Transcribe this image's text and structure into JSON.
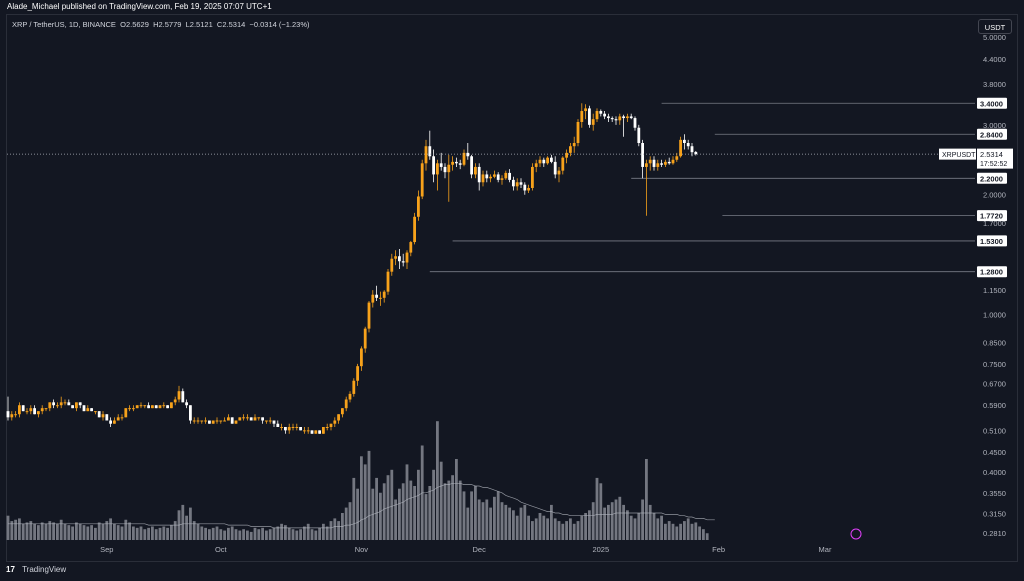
{
  "header": {
    "published_line": "Alade_Michael published on TradingView.com, Feb 19, 2025 07:07 UTC+1"
  },
  "legend": {
    "symbol": "XRP / TetherUS, 1D, BINANCE",
    "o_label": "O",
    "o": "2.5629",
    "h_label": "H",
    "h": "2.5779",
    "l_label": "L",
    "l": "2.5121",
    "c_label": "C",
    "c": "2.5314",
    "change": "−0.0314 (−1.23%)"
  },
  "currency_button": "USDT",
  "footer": {
    "logo_glyph": "17",
    "brand": "TradingView"
  },
  "colors": {
    "background": "#131722",
    "up": "#f7a21b",
    "down": "#ffffff",
    "volume": "#9598a1",
    "level_line": "#787b86",
    "price_line": "#b2b5be"
  },
  "chart_data": {
    "type": "candlestick",
    "symbol": "XRPUSDT",
    "scale": "log",
    "ylim": [
      0.27,
      5.2
    ],
    "x_ticks": [
      "Sep",
      "Oct",
      "Nov",
      "Dec",
      "2025",
      "Feb",
      "Mar"
    ],
    "y_ticks": [
      "5.0000",
      "4.4000",
      "3.8000",
      "3.0000",
      "2.5000",
      "2.0000",
      "1.7000",
      "1.1500",
      "1.0000",
      "0.8500",
      "0.7500",
      "0.6700",
      "0.5900",
      "0.5100",
      "0.4500",
      "0.4000",
      "0.3550",
      "0.3150",
      "0.2810"
    ],
    "levels": [
      "3.4000",
      "2.8400",
      "2.2000",
      "1.7720",
      "1.5300",
      "1.2800"
    ],
    "current_price": {
      "label": "XRPUSDT",
      "price": "2.5314",
      "countdown": "17:52:52"
    },
    "ohlc": [
      [
        0.57,
        0.62,
        0.54,
        0.55
      ],
      [
        0.55,
        0.57,
        0.54,
        0.56
      ],
      [
        0.56,
        0.57,
        0.55,
        0.56
      ],
      [
        0.56,
        0.6,
        0.55,
        0.59
      ],
      [
        0.59,
        0.59,
        0.57,
        0.57
      ],
      [
        0.57,
        0.58,
        0.56,
        0.57
      ],
      [
        0.57,
        0.59,
        0.56,
        0.58
      ],
      [
        0.58,
        0.59,
        0.56,
        0.56
      ],
      [
        0.56,
        0.57,
        0.55,
        0.57
      ],
      [
        0.57,
        0.59,
        0.56,
        0.58
      ],
      [
        0.58,
        0.58,
        0.57,
        0.58
      ],
      [
        0.58,
        0.6,
        0.57,
        0.6
      ],
      [
        0.6,
        0.61,
        0.58,
        0.59
      ],
      [
        0.59,
        0.6,
        0.58,
        0.59
      ],
      [
        0.59,
        0.62,
        0.58,
        0.6
      ],
      [
        0.6,
        0.61,
        0.59,
        0.6
      ],
      [
        0.6,
        0.61,
        0.59,
        0.59
      ],
      [
        0.59,
        0.59,
        0.58,
        0.58
      ],
      [
        0.58,
        0.6,
        0.57,
        0.6
      ],
      [
        0.6,
        0.6,
        0.58,
        0.59
      ],
      [
        0.59,
        0.59,
        0.57,
        0.57
      ],
      [
        0.57,
        0.59,
        0.57,
        0.58
      ],
      [
        0.58,
        0.58,
        0.57,
        0.57
      ],
      [
        0.57,
        0.57,
        0.56,
        0.57
      ],
      [
        0.57,
        0.57,
        0.55,
        0.55
      ],
      [
        0.55,
        0.57,
        0.54,
        0.56
      ],
      [
        0.56,
        0.56,
        0.54,
        0.54
      ],
      [
        0.54,
        0.55,
        0.52,
        0.53
      ],
      [
        0.53,
        0.55,
        0.53,
        0.54
      ],
      [
        0.54,
        0.56,
        0.54,
        0.55
      ],
      [
        0.55,
        0.56,
        0.54,
        0.55
      ],
      [
        0.55,
        0.58,
        0.55,
        0.58
      ],
      [
        0.58,
        0.59,
        0.57,
        0.58
      ],
      [
        0.58,
        0.59,
        0.57,
        0.58
      ],
      [
        0.58,
        0.59,
        0.58,
        0.59
      ],
      [
        0.59,
        0.6,
        0.58,
        0.59
      ],
      [
        0.59,
        0.59,
        0.58,
        0.59
      ],
      [
        0.59,
        0.6,
        0.58,
        0.58
      ],
      [
        0.58,
        0.59,
        0.58,
        0.59
      ],
      [
        0.59,
        0.59,
        0.58,
        0.58
      ],
      [
        0.58,
        0.59,
        0.58,
        0.59
      ],
      [
        0.59,
        0.6,
        0.58,
        0.59
      ],
      [
        0.59,
        0.59,
        0.58,
        0.58
      ],
      [
        0.58,
        0.6,
        0.58,
        0.6
      ],
      [
        0.6,
        0.62,
        0.59,
        0.61
      ],
      [
        0.61,
        0.66,
        0.6,
        0.64
      ],
      [
        0.64,
        0.65,
        0.6,
        0.6
      ],
      [
        0.6,
        0.61,
        0.58,
        0.59
      ],
      [
        0.59,
        0.59,
        0.53,
        0.54
      ],
      [
        0.54,
        0.55,
        0.53,
        0.54
      ],
      [
        0.54,
        0.55,
        0.53,
        0.54
      ],
      [
        0.54,
        0.54,
        0.53,
        0.54
      ],
      [
        0.54,
        0.55,
        0.53,
        0.54
      ],
      [
        0.54,
        0.54,
        0.53,
        0.53
      ],
      [
        0.53,
        0.54,
        0.53,
        0.54
      ],
      [
        0.54,
        0.55,
        0.53,
        0.54
      ],
      [
        0.54,
        0.54,
        0.53,
        0.54
      ],
      [
        0.54,
        0.55,
        0.54,
        0.54
      ],
      [
        0.54,
        0.56,
        0.54,
        0.55
      ],
      [
        0.55,
        0.55,
        0.53,
        0.53
      ],
      [
        0.53,
        0.54,
        0.53,
        0.54
      ],
      [
        0.54,
        0.55,
        0.54,
        0.55
      ],
      [
        0.55,
        0.56,
        0.54,
        0.55
      ],
      [
        0.55,
        0.56,
        0.54,
        0.55
      ],
      [
        0.55,
        0.55,
        0.54,
        0.54
      ],
      [
        0.54,
        0.56,
        0.54,
        0.55
      ],
      [
        0.55,
        0.55,
        0.54,
        0.55
      ],
      [
        0.55,
        0.55,
        0.53,
        0.54
      ],
      [
        0.54,
        0.54,
        0.53,
        0.54
      ],
      [
        0.54,
        0.55,
        0.53,
        0.54
      ],
      [
        0.54,
        0.54,
        0.52,
        0.53
      ],
      [
        0.53,
        0.54,
        0.52,
        0.52
      ],
      [
        0.52,
        0.53,
        0.51,
        0.52
      ],
      [
        0.52,
        0.52,
        0.5,
        0.51
      ],
      [
        0.51,
        0.53,
        0.5,
        0.52
      ],
      [
        0.52,
        0.53,
        0.51,
        0.52
      ],
      [
        0.52,
        0.53,
        0.51,
        0.52
      ],
      [
        0.52,
        0.52,
        0.51,
        0.51
      ],
      [
        0.51,
        0.52,
        0.5,
        0.51
      ],
      [
        0.51,
        0.52,
        0.5,
        0.51
      ],
      [
        0.51,
        0.51,
        0.5,
        0.5
      ],
      [
        0.5,
        0.51,
        0.5,
        0.51
      ],
      [
        0.51,
        0.51,
        0.5,
        0.5
      ],
      [
        0.5,
        0.52,
        0.5,
        0.52
      ],
      [
        0.52,
        0.53,
        0.51,
        0.52
      ],
      [
        0.52,
        0.53,
        0.51,
        0.53
      ],
      [
        0.53,
        0.55,
        0.52,
        0.54
      ],
      [
        0.54,
        0.56,
        0.53,
        0.56
      ],
      [
        0.56,
        0.58,
        0.55,
        0.58
      ],
      [
        0.58,
        0.62,
        0.57,
        0.61
      ],
      [
        0.61,
        0.64,
        0.6,
        0.63
      ],
      [
        0.63,
        0.69,
        0.62,
        0.68
      ],
      [
        0.68,
        0.75,
        0.66,
        0.74
      ],
      [
        0.74,
        0.83,
        0.72,
        0.82
      ],
      [
        0.82,
        0.93,
        0.8,
        0.92
      ],
      [
        0.92,
        1.08,
        0.9,
        1.07
      ],
      [
        1.07,
        1.15,
        1.04,
        1.12
      ],
      [
        1.12,
        1.18,
        1.08,
        1.1
      ],
      [
        1.1,
        1.14,
        1.05,
        1.1
      ],
      [
        1.1,
        1.15,
        1.07,
        1.14
      ],
      [
        1.14,
        1.3,
        1.12,
        1.28
      ],
      [
        1.28,
        1.42,
        1.25,
        1.38
      ],
      [
        1.38,
        1.45,
        1.33,
        1.4
      ],
      [
        1.4,
        1.46,
        1.3,
        1.36
      ],
      [
        1.36,
        1.42,
        1.32,
        1.35
      ],
      [
        1.35,
        1.45,
        1.3,
        1.43
      ],
      [
        1.43,
        1.53,
        1.4,
        1.52
      ],
      [
        1.52,
        1.8,
        1.5,
        1.76
      ],
      [
        1.76,
        2.05,
        1.72,
        1.98
      ],
      [
        1.98,
        2.45,
        1.95,
        2.4
      ],
      [
        2.4,
        2.75,
        2.3,
        2.65
      ],
      [
        2.65,
        2.9,
        2.45,
        2.5
      ],
      [
        2.5,
        2.6,
        2.15,
        2.25
      ],
      [
        2.25,
        2.45,
        2.05,
        2.4
      ],
      [
        2.4,
        2.55,
        2.3,
        2.35
      ],
      [
        2.35,
        2.4,
        2.2,
        2.28
      ],
      [
        2.28,
        2.52,
        1.92,
        2.38
      ],
      [
        2.38,
        2.5,
        2.3,
        2.42
      ],
      [
        2.42,
        2.48,
        2.35,
        2.4
      ],
      [
        2.4,
        2.45,
        2.32,
        2.38
      ],
      [
        2.38,
        2.6,
        2.36,
        2.55
      ],
      [
        2.55,
        2.7,
        2.45,
        2.5
      ],
      [
        2.5,
        2.52,
        2.2,
        2.25
      ],
      [
        2.25,
        2.4,
        2.2,
        2.35
      ],
      [
        2.35,
        2.4,
        2.05,
        2.15
      ],
      [
        2.15,
        2.3,
        2.1,
        2.25
      ],
      [
        2.25,
        2.3,
        2.15,
        2.2
      ],
      [
        2.2,
        2.25,
        2.15,
        2.22
      ],
      [
        2.22,
        2.3,
        2.2,
        2.25
      ],
      [
        2.25,
        2.28,
        2.15,
        2.18
      ],
      [
        2.18,
        2.24,
        2.12,
        2.2
      ],
      [
        2.2,
        2.3,
        2.18,
        2.27
      ],
      [
        2.27,
        2.32,
        2.15,
        2.18
      ],
      [
        2.18,
        2.22,
        2.05,
        2.1
      ],
      [
        2.1,
        2.2,
        2.05,
        2.15
      ],
      [
        2.15,
        2.2,
        2.08,
        2.12
      ],
      [
        2.12,
        2.15,
        2.0,
        2.05
      ],
      [
        2.05,
        2.12,
        2.02,
        2.08
      ],
      [
        2.08,
        2.4,
        2.05,
        2.35
      ],
      [
        2.35,
        2.45,
        2.28,
        2.4
      ],
      [
        2.4,
        2.5,
        2.35,
        2.45
      ],
      [
        2.45,
        2.48,
        2.35,
        2.4
      ],
      [
        2.4,
        2.5,
        2.38,
        2.48
      ],
      [
        2.48,
        2.52,
        2.4,
        2.42
      ],
      [
        2.42,
        2.5,
        2.2,
        2.25
      ],
      [
        2.25,
        2.35,
        2.15,
        2.3
      ],
      [
        2.3,
        2.5,
        2.25,
        2.48
      ],
      [
        2.48,
        2.6,
        2.4,
        2.55
      ],
      [
        2.55,
        2.7,
        2.5,
        2.65
      ],
      [
        2.65,
        2.8,
        2.55,
        2.7
      ],
      [
        2.7,
        3.1,
        2.65,
        3.05
      ],
      [
        3.05,
        3.4,
        2.95,
        3.25
      ],
      [
        3.25,
        3.38,
        3.1,
        3.3
      ],
      [
        3.3,
        3.35,
        2.95,
        3.0
      ],
      [
        3.0,
        3.2,
        2.9,
        3.1
      ],
      [
        3.1,
        3.3,
        3.05,
        3.25
      ],
      [
        3.25,
        3.28,
        3.15,
        3.2
      ],
      [
        3.2,
        3.25,
        3.1,
        3.15
      ],
      [
        3.15,
        3.2,
        3.05,
        3.12
      ],
      [
        3.12,
        3.15,
        3.05,
        3.1
      ],
      [
        3.1,
        3.15,
        3.0,
        3.08
      ],
      [
        3.08,
        3.2,
        3.0,
        3.15
      ],
      [
        3.15,
        3.18,
        2.8,
        3.12
      ],
      [
        3.12,
        3.2,
        3.05,
        3.15
      ],
      [
        3.15,
        3.2,
        3.1,
        3.12
      ],
      [
        3.12,
        3.15,
        2.9,
        2.95
      ],
      [
        2.95,
        3.0,
        2.65,
        2.7
      ],
      [
        2.7,
        2.75,
        2.2,
        2.35
      ],
      [
        2.35,
        2.45,
        1.77,
        2.4
      ],
      [
        2.4,
        2.5,
        2.3,
        2.45
      ],
      [
        2.45,
        2.5,
        2.3,
        2.35
      ],
      [
        2.35,
        2.45,
        2.3,
        2.4
      ],
      [
        2.4,
        2.45,
        2.35,
        2.38
      ],
      [
        2.38,
        2.45,
        2.35,
        2.42
      ],
      [
        2.42,
        2.48,
        2.38,
        2.4
      ],
      [
        2.4,
        2.5,
        2.38,
        2.45
      ],
      [
        2.45,
        2.55,
        2.42,
        2.5
      ],
      [
        2.5,
        2.8,
        2.48,
        2.75
      ],
      [
        2.75,
        2.84,
        2.6,
        2.7
      ],
      [
        2.7,
        2.75,
        2.6,
        2.65
      ],
      [
        2.65,
        2.7,
        2.5,
        2.56
      ],
      [
        2.5629,
        2.5779,
        2.5121,
        2.5314
      ]
    ],
    "volume_axis_max": 1.0,
    "volume": [
      0.18,
      0.14,
      0.15,
      0.16,
      0.12,
      0.13,
      0.14,
      0.12,
      0.11,
      0.13,
      0.12,
      0.14,
      0.13,
      0.12,
      0.15,
      0.12,
      0.11,
      0.1,
      0.13,
      0.12,
      0.11,
      0.1,
      0.11,
      0.09,
      0.13,
      0.12,
      0.14,
      0.16,
      0.12,
      0.11,
      0.1,
      0.15,
      0.13,
      0.1,
      0.09,
      0.1,
      0.08,
      0.09,
      0.1,
      0.08,
      0.09,
      0.1,
      0.09,
      0.11,
      0.14,
      0.22,
      0.26,
      0.18,
      0.24,
      0.14,
      0.12,
      0.1,
      0.09,
      0.08,
      0.09,
      0.1,
      0.08,
      0.07,
      0.09,
      0.1,
      0.08,
      0.07,
      0.08,
      0.07,
      0.06,
      0.09,
      0.08,
      0.09,
      0.07,
      0.08,
      0.09,
      0.1,
      0.12,
      0.11,
      0.09,
      0.08,
      0.07,
      0.08,
      0.1,
      0.12,
      0.08,
      0.07,
      0.09,
      0.12,
      0.1,
      0.14,
      0.16,
      0.14,
      0.2,
      0.24,
      0.28,
      0.46,
      0.38,
      0.62,
      0.56,
      0.66,
      0.38,
      0.46,
      0.35,
      0.42,
      0.48,
      0.52,
      0.3,
      0.38,
      0.42,
      0.56,
      0.44,
      0.4,
      0.52,
      0.7,
      0.34,
      0.4,
      0.52,
      0.88,
      0.58,
      0.42,
      0.44,
      0.48,
      0.6,
      0.44,
      0.36,
      0.24,
      0.36,
      0.4,
      0.3,
      0.28,
      0.3,
      0.24,
      0.32,
      0.36,
      0.28,
      0.26,
      0.24,
      0.22,
      0.18,
      0.24,
      0.26,
      0.18,
      0.14,
      0.16,
      0.2,
      0.18,
      0.16,
      0.26,
      0.16,
      0.14,
      0.12,
      0.14,
      0.16,
      0.12,
      0.14,
      0.18,
      0.2,
      0.22,
      0.28,
      0.46,
      0.42,
      0.24,
      0.26,
      0.28,
      0.3,
      0.32,
      0.26,
      0.22,
      0.18,
      0.16,
      0.2,
      0.3,
      0.6,
      0.26,
      0.2,
      0.16,
      0.18,
      0.12,
      0.14,
      0.12,
      0.1,
      0.12,
      0.14,
      0.16,
      0.12,
      0.13,
      0.1,
      0.08,
      0.05
    ],
    "volume_ma": [
      0.12,
      0.12,
      0.12,
      0.12,
      0.12,
      0.12,
      0.12,
      0.12,
      0.12,
      0.12,
      0.12,
      0.12,
      0.12,
      0.12,
      0.12,
      0.12,
      0.12,
      0.12,
      0.12,
      0.12,
      0.12,
      0.12,
      0.12,
      0.12,
      0.12,
      0.12,
      0.12,
      0.12,
      0.12,
      0.12,
      0.12,
      0.12,
      0.12,
      0.12,
      0.12,
      0.12,
      0.12,
      0.11,
      0.11,
      0.11,
      0.11,
      0.11,
      0.11,
      0.11,
      0.11,
      0.11,
      0.12,
      0.12,
      0.12,
      0.12,
      0.12,
      0.12,
      0.12,
      0.12,
      0.12,
      0.12,
      0.12,
      0.12,
      0.11,
      0.11,
      0.11,
      0.11,
      0.11,
      0.11,
      0.1,
      0.1,
      0.1,
      0.1,
      0.1,
      0.1,
      0.09,
      0.09,
      0.09,
      0.09,
      0.09,
      0.09,
      0.09,
      0.09,
      0.09,
      0.09,
      0.09,
      0.09,
      0.09,
      0.09,
      0.09,
      0.09,
      0.1,
      0.1,
      0.1,
      0.11,
      0.11,
      0.12,
      0.13,
      0.15,
      0.16,
      0.18,
      0.19,
      0.2,
      0.21,
      0.23,
      0.24,
      0.25,
      0.26,
      0.27,
      0.28,
      0.3,
      0.31,
      0.32,
      0.33,
      0.35,
      0.35,
      0.36,
      0.37,
      0.39,
      0.4,
      0.41,
      0.41,
      0.42,
      0.42,
      0.42,
      0.41,
      0.41,
      0.41,
      0.4,
      0.4,
      0.39,
      0.39,
      0.38,
      0.37,
      0.36,
      0.35,
      0.33,
      0.32,
      0.31,
      0.3,
      0.28,
      0.27,
      0.26,
      0.25,
      0.24,
      0.23,
      0.22,
      0.21,
      0.21,
      0.2,
      0.2,
      0.19,
      0.19,
      0.18,
      0.18,
      0.18,
      0.18,
      0.18,
      0.18,
      0.18,
      0.19,
      0.19,
      0.19,
      0.19,
      0.19,
      0.2,
      0.2,
      0.2,
      0.2,
      0.2,
      0.2,
      0.2,
      0.2,
      0.2,
      0.2,
      0.2,
      0.2,
      0.2,
      0.19,
      0.19,
      0.19,
      0.19,
      0.18,
      0.18,
      0.17,
      0.17,
      0.16,
      0.16,
      0.16,
      0.15,
      0.15,
      0.15
    ]
  }
}
